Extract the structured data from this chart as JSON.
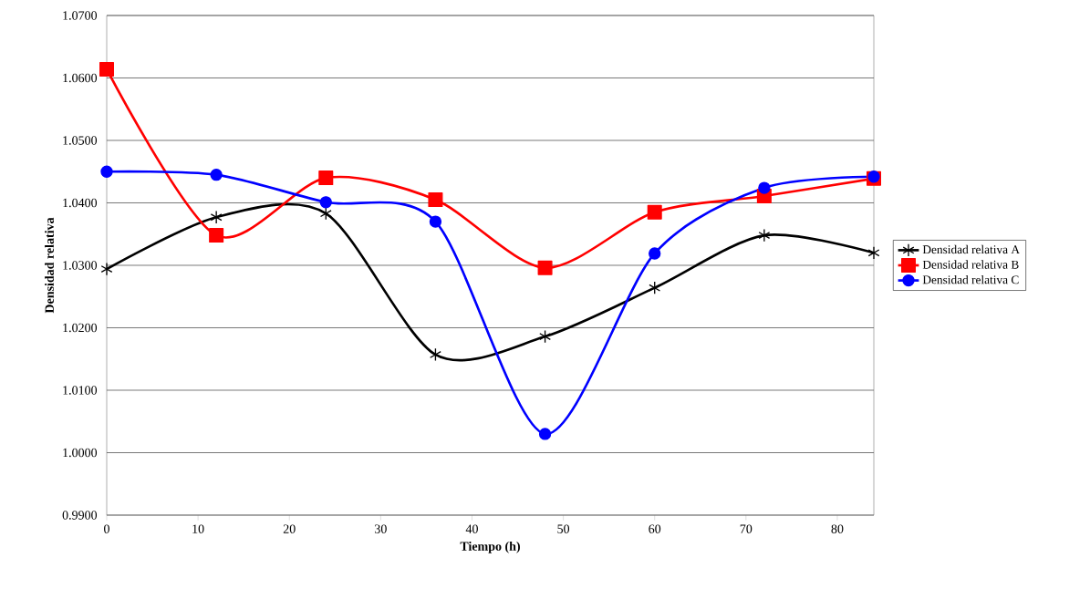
{
  "chart_data": {
    "type": "line",
    "xlabel": "Tiempo (h)",
    "ylabel": "Densidad relativa",
    "x": [
      0,
      12,
      24,
      36,
      48,
      60,
      72,
      84
    ],
    "series": [
      {
        "name": "Densidad relativa A",
        "color": "#000000",
        "marker": "cross",
        "values": [
          1.0294,
          1.0377,
          1.0383,
          1.0157,
          1.0186,
          1.0264,
          1.0348,
          1.032
        ]
      },
      {
        "name": "Densidad relativa B",
        "color": "#ff0000",
        "marker": "square",
        "values": [
          1.0614,
          1.0348,
          1.044,
          1.0405,
          1.0296,
          1.0385,
          1.0411,
          1.0439
        ]
      },
      {
        "name": "Densidad relativa C",
        "color": "#0000ff",
        "marker": "circle",
        "values": [
          1.045,
          1.0445,
          1.0401,
          1.037,
          1.003,
          1.0319,
          1.0424,
          1.0442
        ]
      }
    ],
    "xlim": [
      0,
      84
    ],
    "ylim": [
      0.99,
      1.07
    ],
    "xticks": [
      0,
      10,
      20,
      30,
      40,
      50,
      60,
      70,
      80
    ],
    "yticks": [
      {
        "value": 0.99,
        "label": "0.9900"
      },
      {
        "value": 1.0,
        "label": "1.0000"
      },
      {
        "value": 1.01,
        "label": "1.0100"
      },
      {
        "value": 1.02,
        "label": "1.0200"
      },
      {
        "value": 1.03,
        "label": "1.0300"
      },
      {
        "value": 1.04,
        "label": "1.0400"
      },
      {
        "value": 1.05,
        "label": "1.0500"
      },
      {
        "value": 1.06,
        "label": "1.0600"
      },
      {
        "value": 1.07,
        "label": "1.0700"
      }
    ],
    "grid": "y",
    "legend": "right",
    "line_style": "solid"
  }
}
